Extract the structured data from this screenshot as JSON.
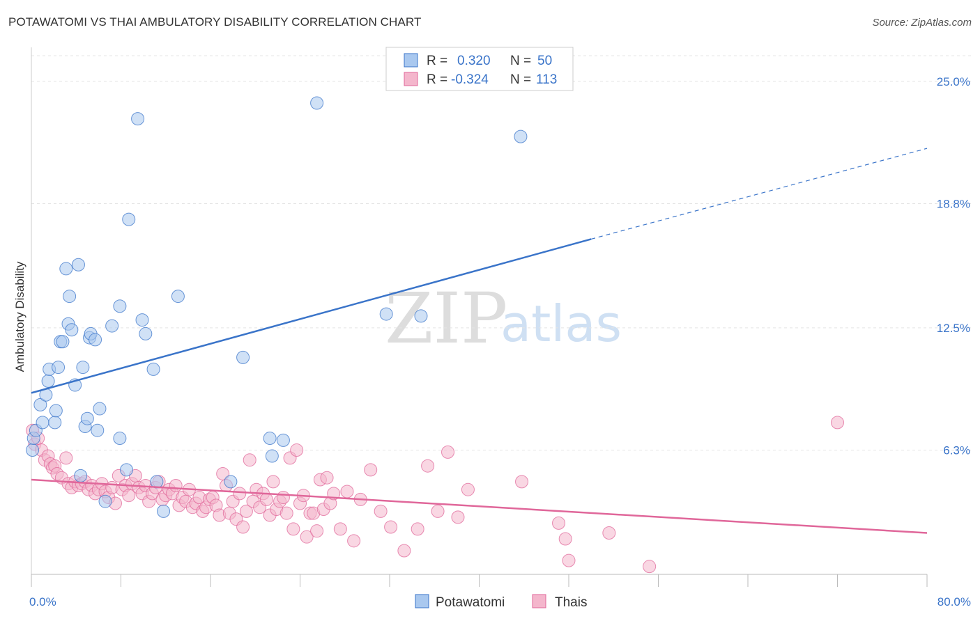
{
  "title": "POTAWATOMI VS THAI AMBULATORY DISABILITY CORRELATION CHART",
  "source": "Source: ZipAtlas.com",
  "watermark": {
    "zip": "ZIP",
    "atlas": "atlas"
  },
  "colors": {
    "blue": "#3a74c9",
    "blue_fill": "#a9c8ef",
    "pink": "#e0679a",
    "pink_fill": "#f4b6cc"
  },
  "legend": {
    "r_label": "R =",
    "n_label": "N =",
    "blue": {
      "r": "0.320",
      "n": "50"
    },
    "pink": {
      "r": "-0.324",
      "n": "113"
    }
  },
  "chart_data": {
    "type": "scatter",
    "ylabel": "Ambulatory Disability",
    "xlim": [
      0,
      80
    ],
    "ylim": [
      0,
      26.3
    ],
    "x_tick_labels": [
      "0.0%",
      "80.0%"
    ],
    "y_ticks": [
      6.3,
      12.5,
      18.8,
      25.0
    ],
    "y_tick_labels": [
      "6.3%",
      "12.5%",
      "18.8%",
      "25.0%"
    ],
    "grid": true,
    "legend_position": "top-center",
    "series": [
      {
        "name": "Potawatomi",
        "color": "#3a74c9",
        "trend": {
          "x0": 0,
          "y0": 9.2,
          "x1": 50,
          "y1": 17.0,
          "dashed_to_x": 80,
          "dashed_to_y": 21.6
        },
        "points": [
          [
            0.1,
            6.3
          ],
          [
            0.2,
            6.9
          ],
          [
            0.4,
            7.3
          ],
          [
            0.8,
            8.6
          ],
          [
            1.0,
            7.7
          ],
          [
            1.3,
            9.1
          ],
          [
            1.5,
            9.8
          ],
          [
            1.6,
            10.4
          ],
          [
            2.1,
            7.7
          ],
          [
            2.2,
            8.3
          ],
          [
            2.4,
            10.5
          ],
          [
            2.6,
            11.8
          ],
          [
            2.8,
            11.8
          ],
          [
            3.1,
            15.5
          ],
          [
            3.3,
            12.7
          ],
          [
            3.4,
            14.1
          ],
          [
            3.6,
            12.4
          ],
          [
            3.9,
            9.6
          ],
          [
            4.2,
            15.7
          ],
          [
            4.4,
            5.0
          ],
          [
            4.6,
            10.5
          ],
          [
            4.8,
            7.5
          ],
          [
            5.0,
            7.9
          ],
          [
            5.2,
            12.0
          ],
          [
            5.3,
            12.2
          ],
          [
            5.7,
            11.9
          ],
          [
            5.9,
            7.3
          ],
          [
            6.1,
            8.4
          ],
          [
            6.6,
            3.7
          ],
          [
            7.2,
            12.6
          ],
          [
            7.9,
            6.9
          ],
          [
            7.9,
            13.6
          ],
          [
            8.5,
            5.3
          ],
          [
            8.7,
            18.0
          ],
          [
            9.5,
            23.1
          ],
          [
            9.9,
            12.9
          ],
          [
            10.2,
            12.2
          ],
          [
            10.9,
            10.4
          ],
          [
            11.2,
            4.7
          ],
          [
            11.8,
            3.2
          ],
          [
            13.1,
            14.1
          ],
          [
            17.8,
            4.7
          ],
          [
            18.9,
            11.0
          ],
          [
            21.3,
            6.9
          ],
          [
            21.5,
            6.0
          ],
          [
            22.5,
            6.8
          ],
          [
            25.5,
            23.9
          ],
          [
            31.7,
            13.2
          ],
          [
            34.8,
            13.1
          ],
          [
            43.7,
            22.2
          ]
        ]
      },
      {
        "name": "Thais",
        "color": "#e0679a",
        "trend": {
          "x0": 0,
          "y0": 4.8,
          "x1": 80,
          "y1": 2.1
        },
        "points": [
          [
            0.1,
            7.3
          ],
          [
            0.3,
            6.6
          ],
          [
            0.6,
            6.9
          ],
          [
            0.9,
            6.3
          ],
          [
            1.2,
            5.8
          ],
          [
            1.5,
            6.0
          ],
          [
            1.7,
            5.6
          ],
          [
            1.9,
            5.4
          ],
          [
            2.1,
            5.5
          ],
          [
            2.3,
            5.1
          ],
          [
            2.7,
            4.9
          ],
          [
            3.1,
            5.9
          ],
          [
            3.3,
            4.6
          ],
          [
            3.6,
            4.4
          ],
          [
            3.9,
            4.7
          ],
          [
            4.2,
            4.5
          ],
          [
            4.5,
            4.6
          ],
          [
            4.8,
            4.7
          ],
          [
            5.1,
            4.3
          ],
          [
            5.4,
            4.5
          ],
          [
            5.7,
            4.1
          ],
          [
            6.0,
            4.3
          ],
          [
            6.3,
            4.6
          ],
          [
            6.6,
            4.2
          ],
          [
            6.9,
            3.9
          ],
          [
            7.2,
            4.4
          ],
          [
            7.5,
            3.6
          ],
          [
            7.8,
            5.0
          ],
          [
            8.1,
            4.3
          ],
          [
            8.4,
            4.5
          ],
          [
            8.7,
            4.0
          ],
          [
            9.0,
            4.6
          ],
          [
            9.3,
            5.0
          ],
          [
            9.6,
            4.4
          ],
          [
            9.9,
            4.1
          ],
          [
            10.2,
            4.5
          ],
          [
            10.5,
            3.7
          ],
          [
            10.8,
            4.1
          ],
          [
            11.1,
            4.4
          ],
          [
            11.4,
            4.7
          ],
          [
            11.7,
            3.8
          ],
          [
            12.0,
            4.0
          ],
          [
            12.3,
            4.3
          ],
          [
            12.6,
            4.1
          ],
          [
            12.9,
            4.5
          ],
          [
            13.2,
            3.5
          ],
          [
            13.5,
            3.9
          ],
          [
            13.8,
            3.7
          ],
          [
            14.1,
            4.3
          ],
          [
            14.4,
            3.4
          ],
          [
            14.7,
            3.6
          ],
          [
            15.0,
            3.9
          ],
          [
            15.3,
            3.2
          ],
          [
            15.6,
            3.4
          ],
          [
            15.9,
            3.8
          ],
          [
            16.2,
            3.9
          ],
          [
            16.5,
            3.5
          ],
          [
            16.8,
            3.0
          ],
          [
            17.1,
            5.1
          ],
          [
            17.4,
            4.5
          ],
          [
            17.7,
            3.1
          ],
          [
            18.0,
            3.7
          ],
          [
            18.3,
            2.8
          ],
          [
            18.6,
            4.1
          ],
          [
            18.9,
            2.4
          ],
          [
            19.2,
            3.2
          ],
          [
            19.5,
            5.8
          ],
          [
            19.8,
            3.7
          ],
          [
            20.1,
            4.3
          ],
          [
            20.4,
            3.4
          ],
          [
            20.7,
            4.1
          ],
          [
            21.0,
            3.8
          ],
          [
            21.3,
            3.0
          ],
          [
            21.6,
            4.7
          ],
          [
            21.9,
            3.3
          ],
          [
            22.2,
            3.7
          ],
          [
            22.5,
            3.9
          ],
          [
            22.8,
            3.1
          ],
          [
            23.1,
            5.9
          ],
          [
            23.4,
            2.3
          ],
          [
            23.7,
            6.3
          ],
          [
            24.0,
            3.6
          ],
          [
            24.3,
            4.0
          ],
          [
            24.6,
            1.9
          ],
          [
            24.9,
            3.1
          ],
          [
            25.2,
            3.1
          ],
          [
            25.5,
            2.2
          ],
          [
            25.8,
            4.8
          ],
          [
            26.1,
            3.3
          ],
          [
            26.4,
            4.9
          ],
          [
            26.7,
            3.6
          ],
          [
            27.0,
            4.1
          ],
          [
            27.6,
            2.3
          ],
          [
            28.2,
            4.2
          ],
          [
            28.8,
            1.7
          ],
          [
            29.4,
            3.8
          ],
          [
            30.3,
            5.3
          ],
          [
            31.2,
            3.2
          ],
          [
            32.1,
            2.4
          ],
          [
            33.3,
            1.2
          ],
          [
            34.5,
            2.3
          ],
          [
            35.4,
            5.5
          ],
          [
            36.3,
            3.2
          ],
          [
            37.2,
            6.2
          ],
          [
            38.1,
            2.9
          ],
          [
            39.0,
            4.3
          ],
          [
            43.8,
            4.7
          ],
          [
            47.1,
            2.6
          ],
          [
            47.7,
            1.8
          ],
          [
            48.0,
            0.7
          ],
          [
            51.6,
            2.1
          ],
          [
            55.2,
            0.4
          ],
          [
            72.0,
            7.7
          ]
        ]
      }
    ]
  },
  "bottom_legend": [
    "Potawatomi",
    "Thais"
  ]
}
